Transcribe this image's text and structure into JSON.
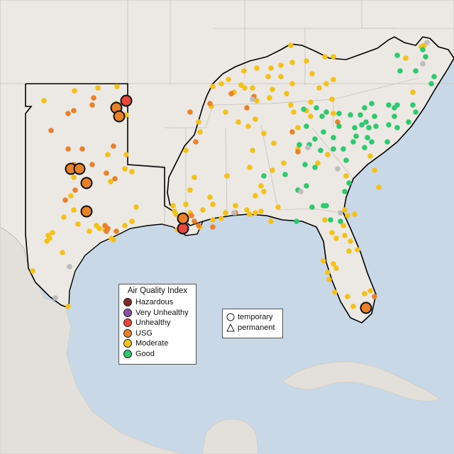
{
  "colors": {
    "water": "#c9d8e6",
    "land": "#ece8e4",
    "foreign_land": "#e3dfdb",
    "hazardous": "#7e2b22",
    "very_unhealthy": "#8e4fa6",
    "unhealthy": "#e8483a",
    "usg": "#e8822a",
    "moderate": "#f2c21b",
    "good": "#2ec86e",
    "no_data": "#bdbdbd"
  },
  "legend": {
    "title": "Air Quality Index",
    "items": [
      {
        "label": "Hazardous",
        "key": "hazardous"
      },
      {
        "label": "Very Unhealthy",
        "key": "very_unhealthy"
      },
      {
        "label": "Unhealthy",
        "key": "unhealthy"
      },
      {
        "label": "USG",
        "key": "usg"
      },
      {
        "label": "Moderate",
        "key": "moderate"
      },
      {
        "label": "Good",
        "key": "good"
      }
    ]
  },
  "site_legend": {
    "items": [
      {
        "label": "temporary",
        "shape": "circle"
      },
      {
        "label": "permanent",
        "shape": "triangle"
      }
    ]
  }
}
